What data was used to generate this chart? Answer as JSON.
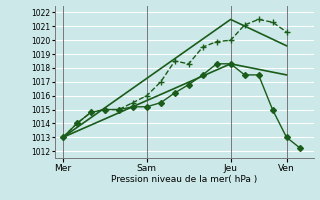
{
  "background_color": "#cce8e8",
  "grid_color": "#ffffff",
  "line_color": "#1a5c1a",
  "xlabel": "Pression niveau de la mer( hPa )",
  "ylim": [
    1011.5,
    1022.5
  ],
  "yticks": [
    1012,
    1013,
    1014,
    1015,
    1016,
    1017,
    1018,
    1019,
    1020,
    1021,
    1022
  ],
  "day_labels": [
    "Mer",
    "Sam",
    "Jeu",
    "Ven"
  ],
  "day_positions": [
    0,
    3,
    6,
    8
  ],
  "xlim": [
    -0.3,
    9.0
  ],
  "series_dotted": {
    "x": [
      0,
      0.5,
      1.0,
      1.5,
      2.0,
      2.5,
      3.0,
      3.5,
      4.0,
      4.5,
      5.0,
      5.5,
      6.0,
      6.5,
      7.0,
      7.5,
      8.0
    ],
    "y": [
      1013.0,
      1014.0,
      1014.8,
      1015.0,
      1015.0,
      1015.5,
      1016.0,
      1017.0,
      1018.5,
      1018.3,
      1019.5,
      1019.9,
      1020.0,
      1021.1,
      1021.5,
      1021.3,
      1020.6
    ],
    "marker": "+",
    "markersize": 4,
    "linestyle": "--",
    "linewidth": 1.0
  },
  "series_upper": {
    "x": [
      0,
      6,
      8
    ],
    "y": [
      1013.0,
      1021.5,
      1019.6
    ],
    "marker": "None",
    "linestyle": "-",
    "linewidth": 1.2
  },
  "series_lower": {
    "x": [
      0,
      6,
      8
    ],
    "y": [
      1013.0,
      1018.3,
      1017.5
    ],
    "marker": "None",
    "linestyle": "-",
    "linewidth": 1.2
  },
  "series_solid": {
    "x": [
      0,
      0.5,
      1.0,
      1.5,
      2.0,
      2.5,
      3.0,
      3.5,
      4.0,
      4.5,
      5.0,
      5.5,
      6.0,
      6.5,
      7.0,
      7.5,
      8.0,
      8.5
    ],
    "y": [
      1013.0,
      1014.0,
      1014.8,
      1015.0,
      1015.0,
      1015.2,
      1015.2,
      1015.5,
      1016.2,
      1016.8,
      1017.5,
      1018.3,
      1018.3,
      1017.5,
      1017.5,
      1015.0,
      1013.0,
      1012.2
    ],
    "marker": "D",
    "markersize": 3,
    "linestyle": "-",
    "linewidth": 1.0
  }
}
